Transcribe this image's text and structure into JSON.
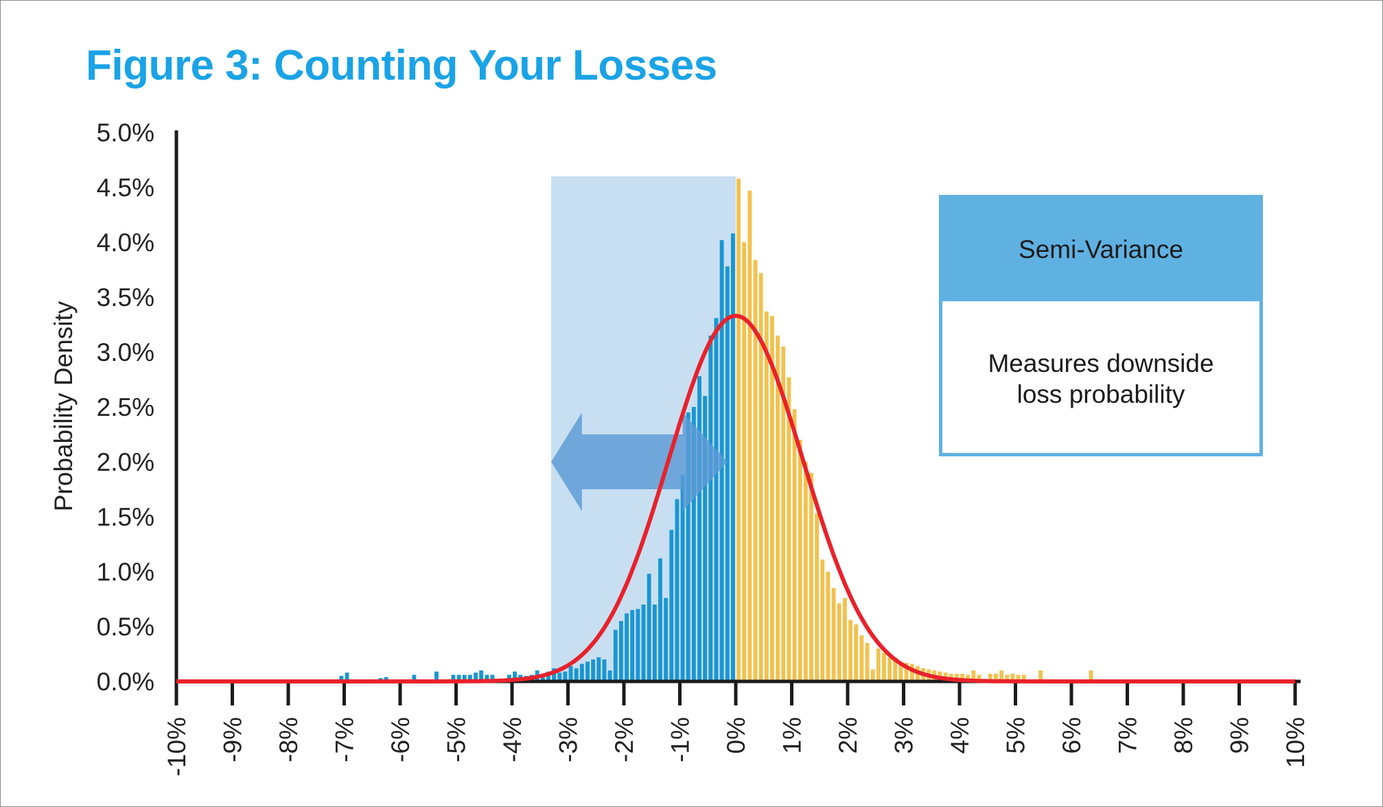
{
  "title": "Figure 3: Counting Your Losses",
  "legend": {
    "header": "Semi-Variance",
    "body_line1": "Measures downside",
    "body_line2": "loss probability"
  },
  "colors": {
    "title": "#1aa3e6",
    "loss_bars": "#1a96d2",
    "gain_bars": "#f2c24f",
    "highlight": "#c8dff2",
    "arrow": "#5b9bd5",
    "curve": "#e8222b",
    "axis": "#1b1b1b",
    "legend": "#5fb1e2"
  },
  "chart_data": {
    "type": "bar",
    "ylabel": "Probability Density",
    "xlabel": "",
    "xlim": [
      -10,
      10
    ],
    "ylim": [
      0,
      5
    ],
    "x_ticks": [
      "-10%",
      "-9%",
      "-8%",
      "-7%",
      "-6%",
      "-5%",
      "-4%",
      "-3%",
      "-2%",
      "-1%",
      "0%",
      "1%",
      "2%",
      "3%",
      "4%",
      "5%",
      "6%",
      "7%",
      "8%",
      "9%",
      "10%"
    ],
    "y_ticks": [
      "0.0%",
      "0.5%",
      "1.0%",
      "1.5%",
      "2.0%",
      "2.5%",
      "3.0%",
      "3.5%",
      "4.0%",
      "4.5%",
      "5.0%"
    ],
    "highlight_range_x": [
      -3.3,
      0
    ],
    "highlight_top_y": 4.6,
    "series": [
      {
        "color": "#1a96d2",
        "bin_width": 0.1,
        "points": [
          [
            -7.1,
            0.05
          ],
          [
            -7.0,
            0.08
          ],
          [
            -6.4,
            0.03
          ],
          [
            -6.3,
            0.04
          ],
          [
            -5.8,
            0.06
          ],
          [
            -5.4,
            0.09
          ],
          [
            -5.1,
            0.06
          ],
          [
            -5.0,
            0.06
          ],
          [
            -4.9,
            0.06
          ],
          [
            -4.8,
            0.06
          ],
          [
            -4.7,
            0.08
          ],
          [
            -4.6,
            0.1
          ],
          [
            -4.5,
            0.06
          ],
          [
            -4.4,
            0.06
          ],
          [
            -4.1,
            0.06
          ],
          [
            -4.0,
            0.09
          ],
          [
            -3.9,
            0.06
          ],
          [
            -3.8,
            0.05
          ],
          [
            -3.7,
            0.06
          ],
          [
            -3.6,
            0.1
          ],
          [
            -3.5,
            0.06
          ],
          [
            -3.4,
            0.09
          ],
          [
            -3.3,
            0.12
          ],
          [
            -3.2,
            0.08
          ],
          [
            -3.1,
            0.09
          ],
          [
            -3.0,
            0.14
          ],
          [
            -2.9,
            0.12
          ],
          [
            -2.8,
            0.16
          ],
          [
            -2.7,
            0.18
          ],
          [
            -2.6,
            0.2
          ],
          [
            -2.5,
            0.22
          ],
          [
            -2.4,
            0.2
          ],
          [
            -2.3,
            0.1
          ],
          [
            -2.2,
            0.47
          ],
          [
            -2.1,
            0.55
          ],
          [
            -2.0,
            0.62
          ],
          [
            -1.9,
            0.65
          ],
          [
            -1.8,
            0.66
          ],
          [
            -1.7,
            0.7
          ],
          [
            -1.6,
            0.98
          ],
          [
            -1.5,
            0.7
          ],
          [
            -1.4,
            1.12
          ],
          [
            -1.3,
            0.76
          ],
          [
            -1.2,
            1.38
          ],
          [
            -1.1,
            1.66
          ],
          [
            -1.0,
            1.88
          ],
          [
            -0.9,
            2.45
          ],
          [
            -0.8,
            2.5
          ],
          [
            -0.7,
            2.78
          ],
          [
            -0.6,
            2.6
          ],
          [
            -0.5,
            3.15
          ],
          [
            -0.4,
            3.31
          ],
          [
            -0.3,
            4.02
          ],
          [
            -0.2,
            3.78
          ],
          [
            -0.1,
            4.08
          ]
        ]
      },
      {
        "color": "#f2c24f",
        "bin_width": 0.1,
        "points": [
          [
            0.0,
            4.58
          ],
          [
            0.1,
            4.0
          ],
          [
            0.2,
            4.47
          ],
          [
            0.3,
            3.84
          ],
          [
            0.4,
            3.72
          ],
          [
            0.5,
            3.37
          ],
          [
            0.6,
            3.33
          ],
          [
            0.7,
            3.15
          ],
          [
            0.8,
            3.05
          ],
          [
            0.9,
            2.77
          ],
          [
            1.0,
            2.48
          ],
          [
            1.1,
            2.2
          ],
          [
            1.2,
            2.0
          ],
          [
            1.3,
            1.9
          ],
          [
            1.4,
            1.53
          ],
          [
            1.5,
            1.11
          ],
          [
            1.6,
            1.0
          ],
          [
            1.7,
            0.85
          ],
          [
            1.8,
            0.71
          ],
          [
            1.9,
            0.76
          ],
          [
            2.0,
            0.56
          ],
          [
            2.1,
            0.52
          ],
          [
            2.2,
            0.42
          ],
          [
            2.3,
            0.35
          ],
          [
            2.4,
            0.11
          ],
          [
            2.5,
            0.3
          ],
          [
            2.6,
            0.26
          ],
          [
            2.7,
            0.22
          ],
          [
            2.8,
            0.22
          ],
          [
            2.9,
            0.18
          ],
          [
            3.0,
            0.17
          ],
          [
            3.1,
            0.16
          ],
          [
            3.2,
            0.14
          ],
          [
            3.3,
            0.12
          ],
          [
            3.4,
            0.11
          ],
          [
            3.5,
            0.1
          ],
          [
            3.6,
            0.09
          ],
          [
            3.7,
            0.08
          ],
          [
            3.8,
            0.07
          ],
          [
            3.9,
            0.07
          ],
          [
            4.0,
            0.07
          ],
          [
            4.1,
            0.06
          ],
          [
            4.2,
            0.1
          ],
          [
            4.3,
            0.06
          ],
          [
            4.5,
            0.07
          ],
          [
            4.6,
            0.07
          ],
          [
            4.7,
            0.1
          ],
          [
            4.8,
            0.06
          ],
          [
            4.9,
            0.07
          ],
          [
            5.0,
            0.06
          ],
          [
            5.1,
            0.06
          ],
          [
            5.4,
            0.1
          ],
          [
            6.3,
            0.1
          ]
        ]
      }
    ],
    "curve": {
      "color": "#e8222b",
      "mean": 0.0,
      "peak": 3.33,
      "std": 1.2
    }
  }
}
